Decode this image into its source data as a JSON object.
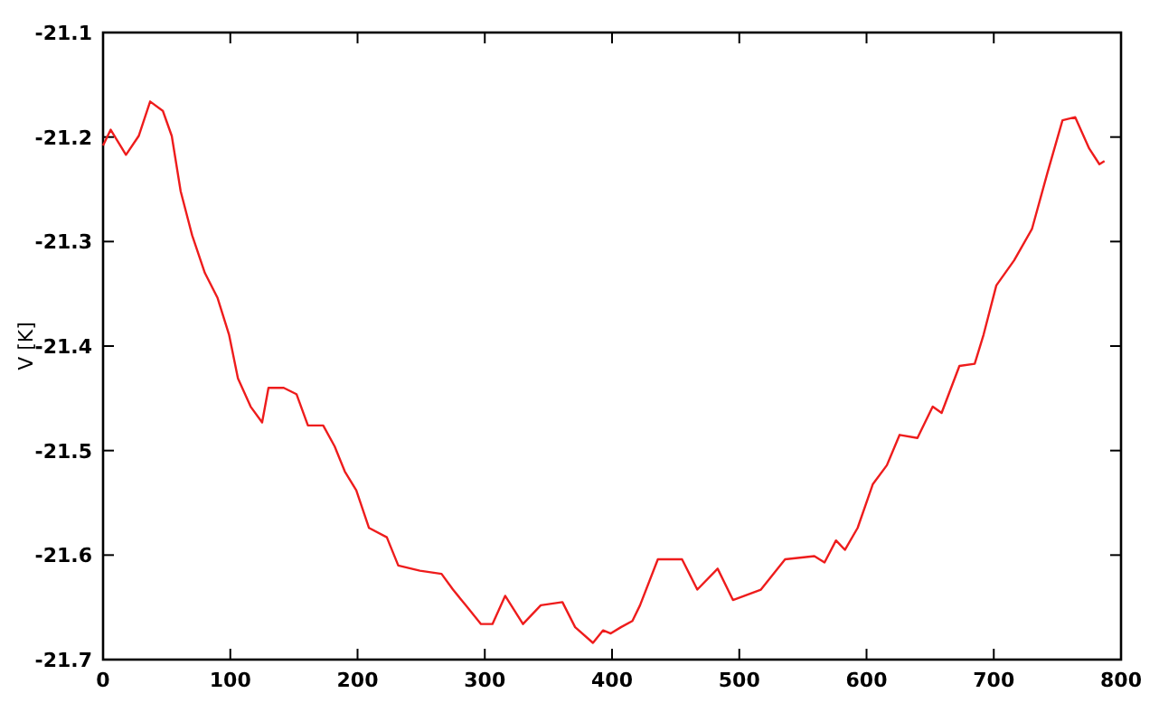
{
  "chart_data": {
    "type": "line",
    "ylabel": "V [K]",
    "xlim": [
      0,
      800
    ],
    "xticks": [
      0,
      100,
      200,
      300,
      400,
      500,
      600,
      700,
      800
    ],
    "ylim": [
      -21.7,
      -21.1
    ],
    "yticks": [
      -21.7,
      -21.6,
      -21.5,
      -21.4,
      -21.3,
      -21.2,
      -21.1
    ],
    "grid": false,
    "marker": "none",
    "line_style": "solid",
    "series": [
      {
        "color": "#ee1c1c",
        "x": [
          0,
          6,
          18,
          28,
          37,
          47,
          54,
          61,
          70,
          80,
          90,
          99,
          106,
          116,
          125,
          130,
          142,
          152,
          161,
          173,
          182,
          190,
          199,
          209,
          223,
          232,
          249,
          266,
          275,
          285,
          297,
          306,
          316,
          330,
          344,
          361,
          371,
          385,
          393,
          399,
          407,
          416,
          422,
          436,
          455,
          467,
          483,
          495,
          517,
          536,
          559,
          567,
          576,
          583,
          593,
          605,
          616,
          626,
          640,
          652,
          659,
          673,
          685,
          692,
          702,
          716,
          730,
          742,
          754,
          764,
          775,
          783,
          787
        ],
        "values": [
          -21.208,
          -21.193,
          -21.217,
          -21.199,
          -21.166,
          -21.175,
          -21.199,
          -21.252,
          -21.294,
          -21.33,
          -21.354,
          -21.389,
          -21.431,
          -21.458,
          -21.473,
          -21.44,
          -21.44,
          -21.446,
          -21.476,
          -21.476,
          -21.496,
          -21.52,
          -21.538,
          -21.574,
          -21.583,
          -21.61,
          -21.615,
          -21.618,
          -21.633,
          -21.648,
          -21.666,
          -21.666,
          -21.639,
          -21.666,
          -21.648,
          -21.645,
          -21.669,
          -21.684,
          -21.672,
          -21.675,
          -21.669,
          -21.663,
          -21.648,
          -21.604,
          -21.604,
          -21.633,
          -21.613,
          -21.643,
          -21.633,
          -21.604,
          -21.601,
          -21.607,
          -21.586,
          -21.595,
          -21.574,
          -21.532,
          -21.514,
          -21.485,
          -21.488,
          -21.458,
          -21.464,
          -21.419,
          -21.417,
          -21.389,
          -21.342,
          -21.318,
          -21.288,
          -21.235,
          -21.184,
          -21.181,
          -21.211,
          -21.226,
          -21.223
        ]
      }
    ]
  }
}
